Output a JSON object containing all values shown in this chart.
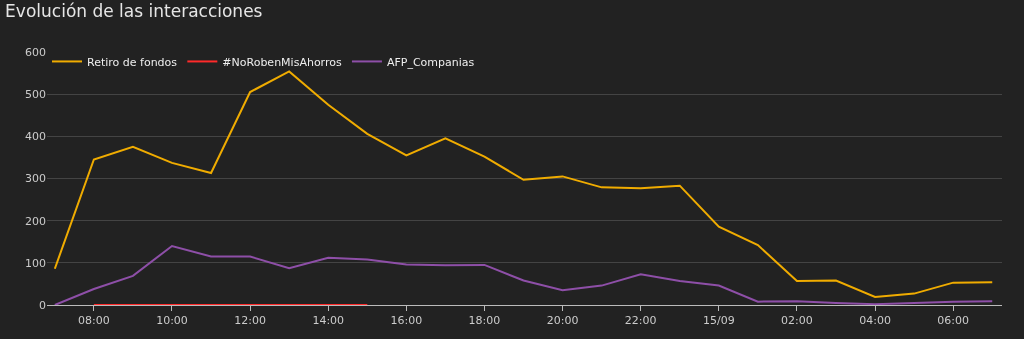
{
  "chart_data": {
    "type": "line",
    "title": "Evolución de las interacciones",
    "x": [
      "--09-14T07:00",
      "--09-14T08:00",
      "--09-14T09:00",
      "--09-14T10:00",
      "--09-14T11:00",
      "--09-14T12:00",
      "--09-14T13:00",
      "--09-14T14:00",
      "--09-14T15:00",
      "--09-14T16:00",
      "--09-14T17:00",
      "--09-14T18:00",
      "--09-14T19:00",
      "--09-14T20:00",
      "--09-14T21:00",
      "--09-14T22:00",
      "--09-14T23:00",
      "--09-15T00:00",
      "--09-15T01:00",
      "--09-15T02:00",
      "--09-15T03:00",
      "--09-15T04:00",
      "--09-15T05:00",
      "--09-15T06:00",
      "--09-15T07:00"
    ],
    "series": [
      {
        "name": "Retiro de fondos",
        "color": "#f0ac00",
        "values": [
          86,
          345,
          375,
          337,
          313,
          505,
          554,
          475,
          406,
          355,
          395,
          352,
          297,
          305,
          279,
          277,
          283,
          186,
          142,
          57,
          58,
          19,
          27,
          53,
          54
        ]
      },
      {
        "name": "#NoRobenMisAhorros",
        "color": "#ff2a2a",
        "x": [
          "--09-14T08:00",
          "--09-14T09:00",
          "--09-14T10:00",
          "--09-14T11:00",
          "--09-14T12:00",
          "--09-14T13:00",
          "--09-14T14:00",
          "--09-14T15:00"
        ],
        "values": [
          0,
          0,
          0,
          0,
          0,
          0,
          0,
          0
        ]
      },
      {
        "name": "AFP_Companias",
        "color": "#8e4fa8",
        "values": [
          0,
          38,
          69,
          140,
          115,
          115,
          87,
          112,
          108,
          96,
          94,
          95,
          58,
          35,
          46,
          73,
          57,
          46,
          8,
          9,
          5,
          2,
          5,
          8,
          9
        ]
      }
    ],
    "xlim": [
      "--09-14T06:48",
      "--09-15T07:15"
    ],
    "xticks": [
      {
        "value": "--09-14T08:00",
        "label": "08:00"
      },
      {
        "value": "--09-14T10:00",
        "label": "10:00"
      },
      {
        "value": "--09-14T12:00",
        "label": "12:00"
      },
      {
        "value": "--09-14T14:00",
        "label": "14:00"
      },
      {
        "value": "--09-14T16:00",
        "label": "16:00"
      },
      {
        "value": "--09-14T18:00",
        "label": "18:00"
      },
      {
        "value": "--09-14T20:00",
        "label": "20:00"
      },
      {
        "value": "--09-14T22:00",
        "label": "22:00"
      },
      {
        "value": "--09-15T00:00",
        "label": "15/09"
      },
      {
        "value": "--09-15T02:00",
        "label": "02:00"
      },
      {
        "value": "--09-15T04:00",
        "label": "04:00"
      },
      {
        "value": "--09-15T06:00",
        "label": "06:00"
      }
    ],
    "ylim": [
      0,
      600
    ],
    "yticks": [
      0,
      100,
      200,
      300,
      400,
      500,
      600
    ],
    "grid": "y",
    "legend": "top left",
    "marker": "none",
    "line_style": "solid"
  }
}
